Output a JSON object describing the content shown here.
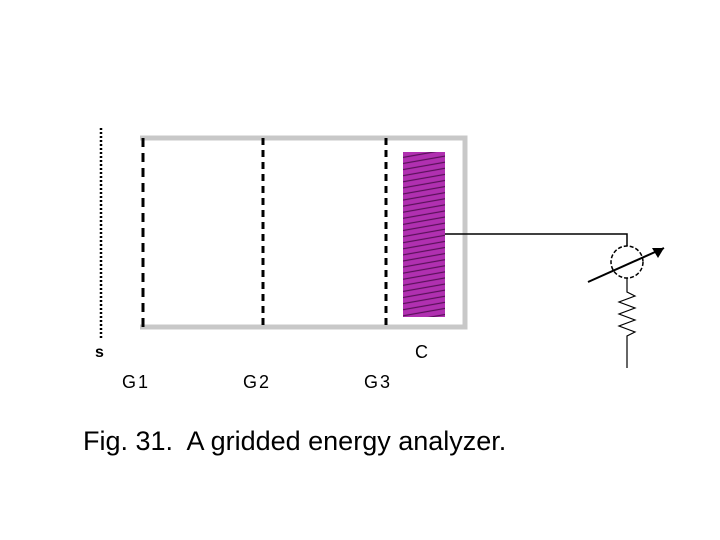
{
  "labels": {
    "s": "s",
    "c": "C",
    "g1": "G1",
    "g2": "G2",
    "g3": "G3"
  },
  "caption": "Fig. 31.  A gridded energy analyzer."
}
